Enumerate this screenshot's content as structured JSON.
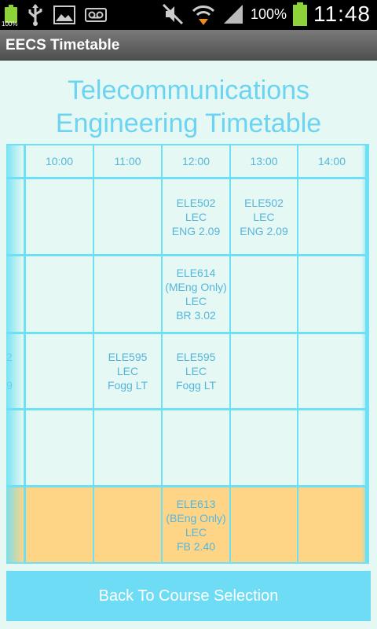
{
  "status_bar": {
    "battery_small_label": "100%",
    "battery_percent": "100%",
    "time": "11:48",
    "icons": [
      "battery-icon",
      "usb-icon",
      "image-icon",
      "voicemail-icon",
      "mute-icon",
      "wifi-icon",
      "signal-icon",
      "battery-icon"
    ]
  },
  "app": {
    "title": "EECS Timetable"
  },
  "heading": {
    "line1": "Telecommunications",
    "line2": "Engineering Timetable"
  },
  "timetable": {
    "times": [
      "10:00",
      "11:00",
      "12:00",
      "13:00",
      "14:00"
    ],
    "partial_left_col": [
      "",
      "",
      "2\n\n9",
      "",
      ""
    ],
    "rows": [
      [
        "",
        "",
        "ELE502\nLEC\nENG 2.09",
        "ELE502\nLEC\nENG 2.09",
        ""
      ],
      [
        "",
        "",
        "ELE614\n(MEng Only)\nLEC\nBR 3.02",
        "",
        ""
      ],
      [
        "",
        "ELE595\nLEC\nFogg LT",
        "ELE595\nLEC\nFogg LT",
        "",
        ""
      ],
      [
        "",
        "",
        "",
        "",
        ""
      ],
      [
        "",
        "",
        "ELE613\n(BEng Only)\nLEC\nFB 2.40",
        "",
        ""
      ]
    ],
    "highlighted_row": 4
  },
  "colors": {
    "background": "#e5f8f3",
    "accent": "#6cd4f2",
    "grid_line": "#6de0f6",
    "cell_text": "#55b6dd",
    "highlight": "#fed586"
  },
  "footer": {
    "back_button_label": "Back To Course Selection"
  }
}
